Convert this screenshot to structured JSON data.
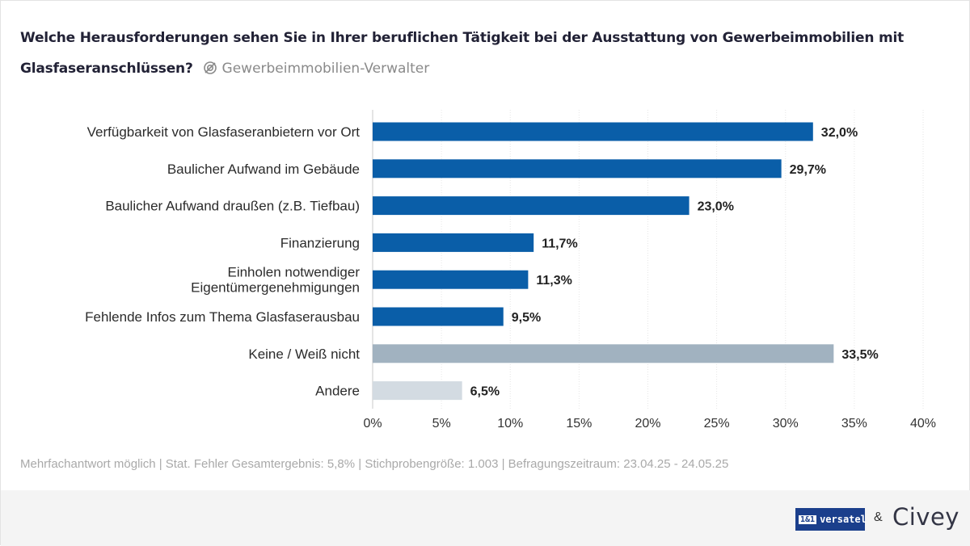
{
  "title": {
    "question": "Welche Herausforderungen sehen Sie in Ihrer beruflichen Tätigkeit bei der Ausstattung von Gewerbeimmobilien mit Glasfaseranschlüssen?",
    "subtitle": "Gewerbeimmobilien-Verwalter",
    "subtitle_icon": "target-group-icon"
  },
  "chart_data": {
    "type": "bar",
    "orientation": "horizontal",
    "categories": [
      "Verfügbarkeit von Glasfaseranbietern vor Ort",
      "Baulicher Aufwand im Gebäude",
      "Baulicher Aufwand draußen (z.B. Tiefbau)",
      "Finanzierung",
      [
        "Einholen notwendiger",
        "Eigentümergenehmigungen"
      ],
      "Fehlende Infos zum Thema Glasfaserausbau",
      "Keine / Weiß nicht",
      "Andere"
    ],
    "values": [
      32.0,
      29.7,
      23.0,
      11.7,
      11.3,
      9.5,
      33.5,
      6.5
    ],
    "value_labels": [
      "32,0%",
      "29,7%",
      "23,0%",
      "11,7%",
      "11,3%",
      "9,5%",
      "33,5%",
      "6,5%"
    ],
    "bar_colors": [
      "#0a5ea8",
      "#0a5ea8",
      "#0a5ea8",
      "#0a5ea8",
      "#0a5ea8",
      "#0a5ea8",
      "#a1b2c0",
      "#d3dbe2"
    ],
    "xlim": [
      0,
      40
    ],
    "xticks": [
      0,
      5,
      10,
      15,
      20,
      25,
      30,
      35,
      40
    ],
    "xtick_labels": [
      "0%",
      "5%",
      "10%",
      "15%",
      "20%",
      "25%",
      "30%",
      "35%",
      "40%"
    ],
    "grid": true,
    "xlabel": "",
    "ylabel": ""
  },
  "footnote": "Mehrfachantwort möglich | Stat. Fehler Gesamtergebnis: 5,8% | Stichprobengröße: 1.003 | Befragungszeitraum: 23.04.25 - 24.05.25",
  "footer": {
    "logo_versatel_tag": "1&1",
    "logo_versatel_text": "versatel",
    "ampersand": "&",
    "logo_civey": "Civey"
  },
  "colors": {
    "primary_bar": "#0a5ea8",
    "neutral_bar": "#a1b2c0",
    "other_bar": "#d3dbe2",
    "title": "#222236",
    "footnote": "#a9a9a9"
  }
}
